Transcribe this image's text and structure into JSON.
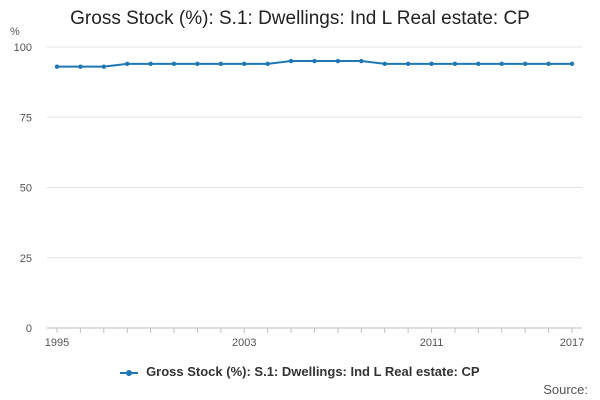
{
  "chart_data": {
    "type": "line",
    "title": "Gross Stock (%): S.1: Dwellings: Ind L Real estate: CP",
    "y_unit": "%",
    "ylim": [
      0,
      100
    ],
    "yticks": [
      0,
      25,
      50,
      75,
      100
    ],
    "x": [
      1995,
      1996,
      1997,
      1998,
      1999,
      2000,
      2001,
      2002,
      2003,
      2004,
      2005,
      2006,
      2007,
      2008,
      2009,
      2010,
      2011,
      2012,
      2013,
      2014,
      2015,
      2016,
      2017
    ],
    "xticks": [
      1995,
      2003,
      2011,
      2017
    ],
    "series": [
      {
        "name": "Gross Stock (%): S.1: Dwellings: Ind L Real estate: CP",
        "color": "#1f78b4",
        "values": [
          93,
          93,
          93,
          94,
          94,
          94,
          94,
          94,
          94,
          94,
          95,
          95,
          95,
          95,
          94,
          94,
          94,
          94,
          94,
          94,
          94,
          94,
          94
        ]
      }
    ],
    "grid": true,
    "legend_position": "bottom"
  },
  "footer": {
    "source_label": "Source:"
  }
}
